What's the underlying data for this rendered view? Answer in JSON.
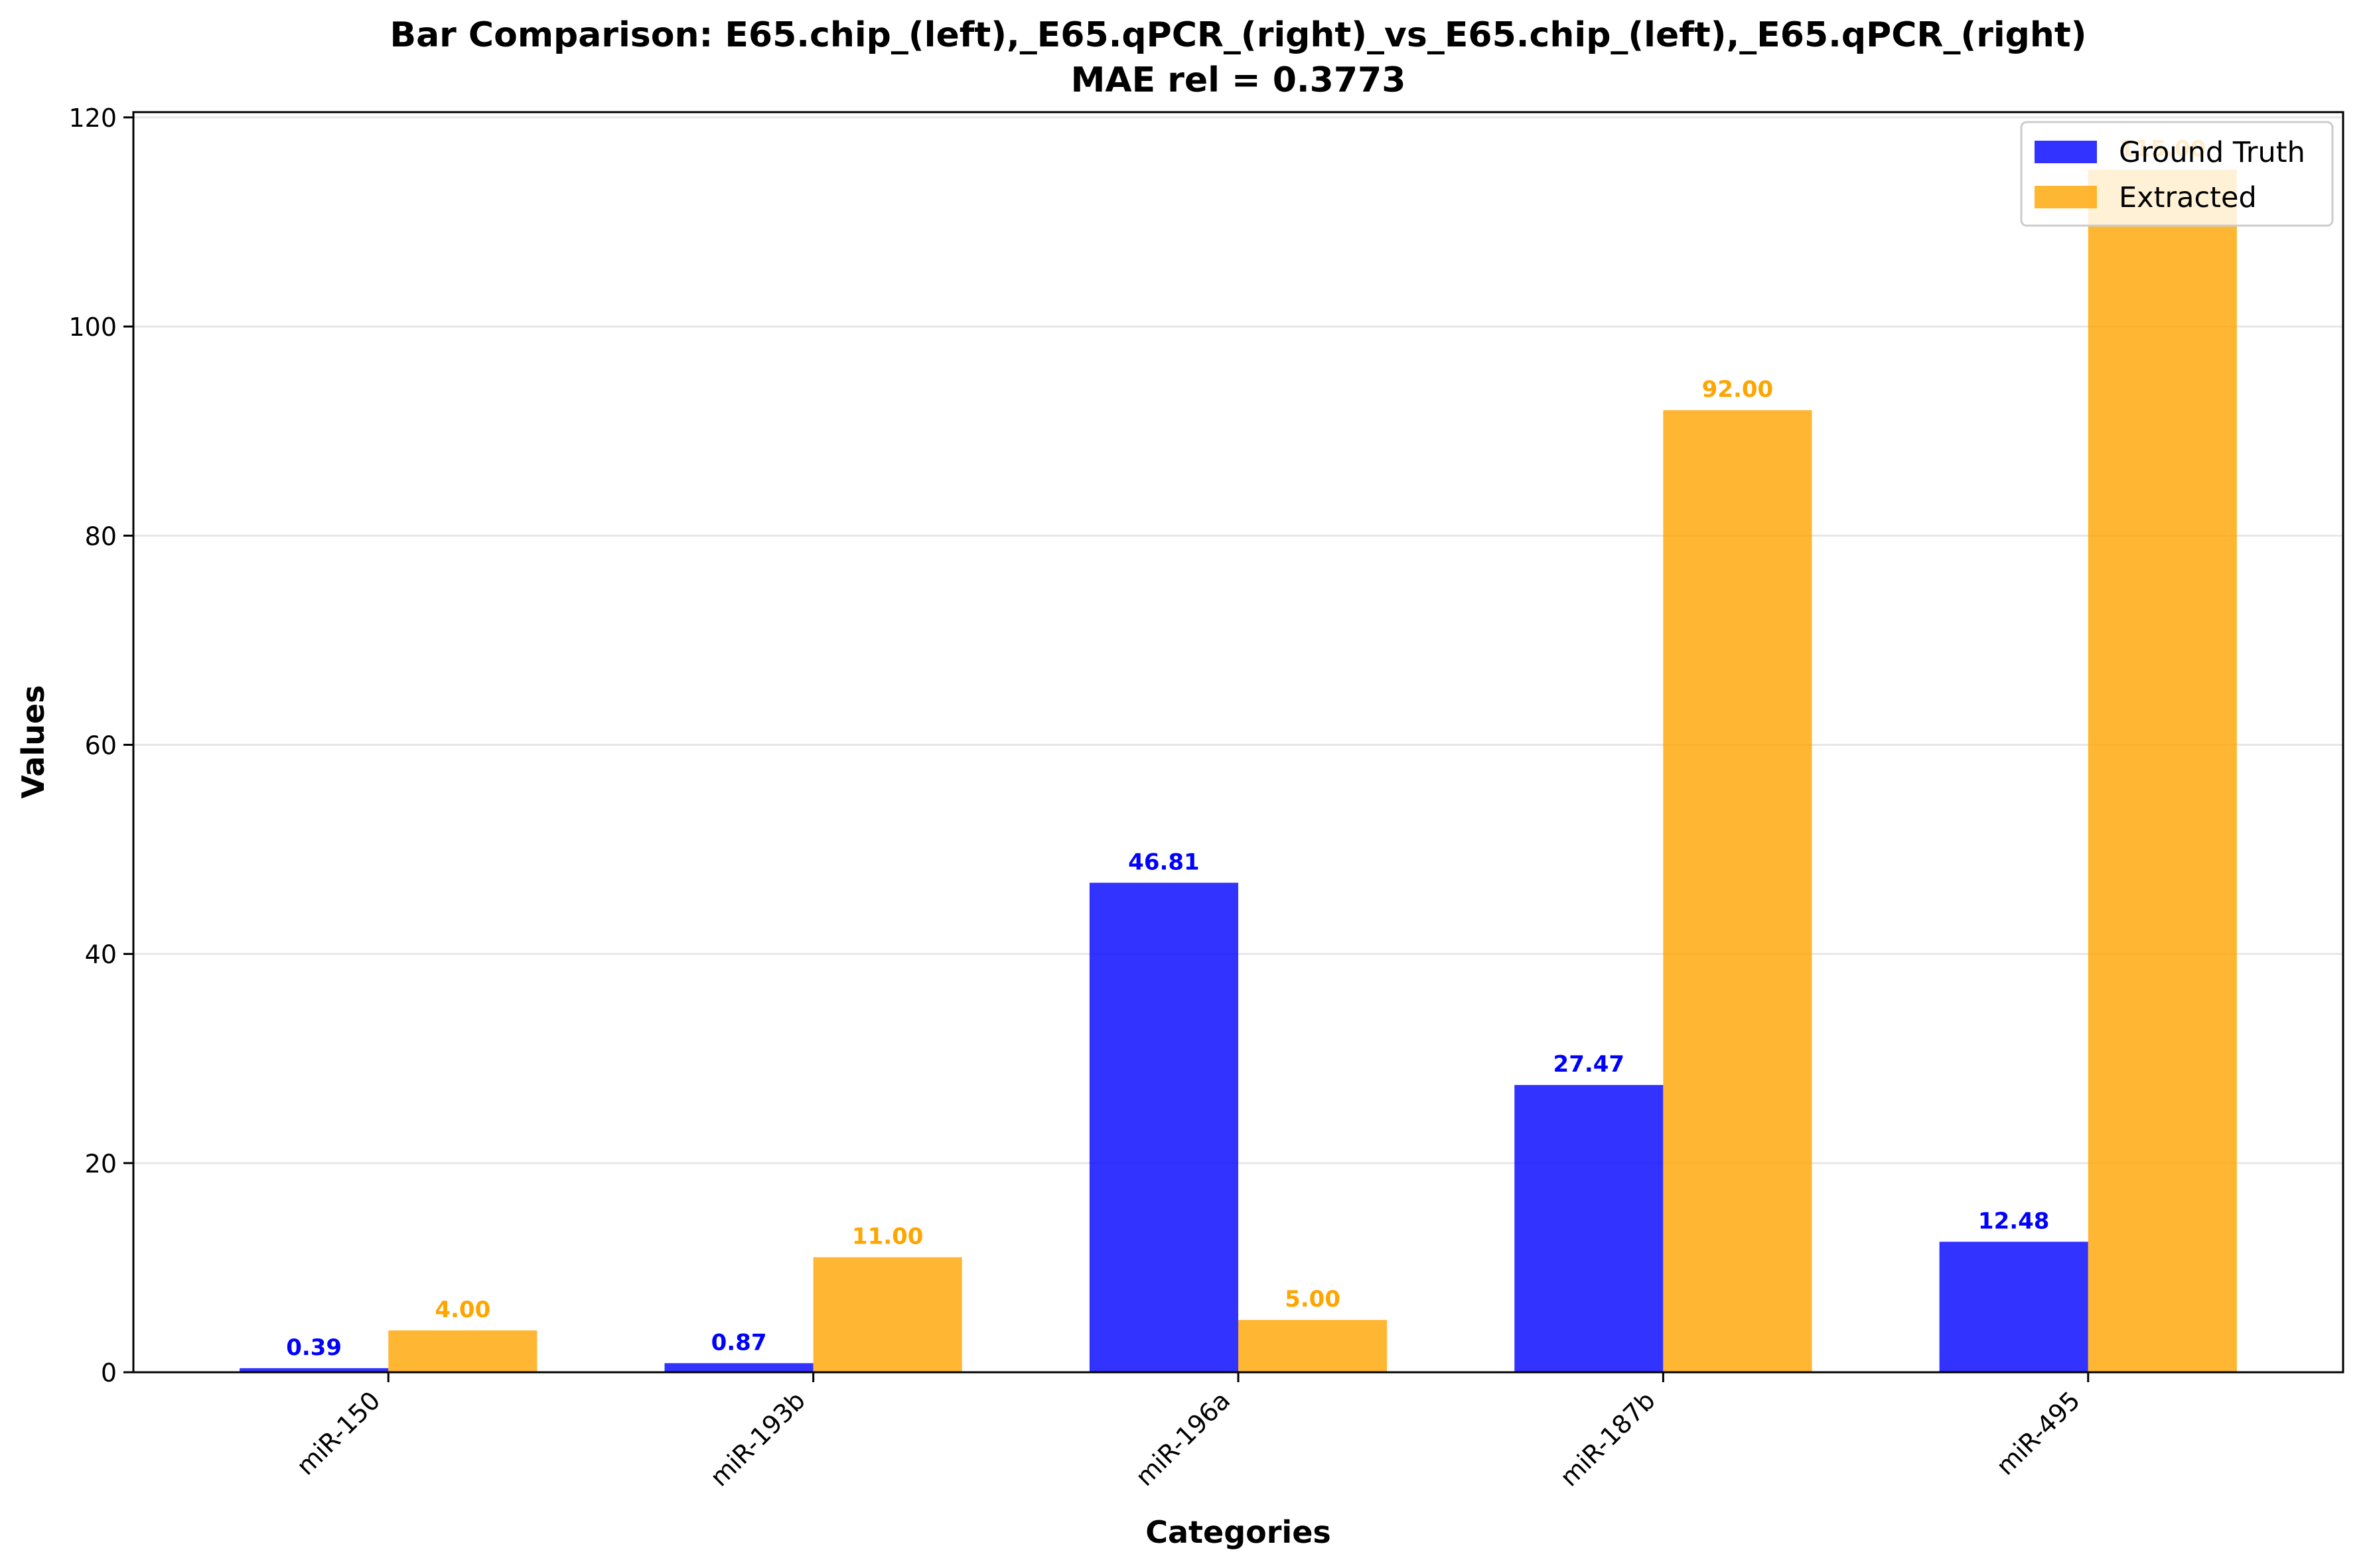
{
  "chart_data": {
    "type": "bar",
    "title": "Bar Comparison: E65.chip_(left),_E65.qPCR_(right)_vs_E65.chip_(left),_E65.qPCR_(right)",
    "subtitle": "MAE rel = 0.3773",
    "xlabel": "Categories",
    "ylabel": "Values",
    "ylim": [
      0,
      120.5
    ],
    "yticks": [
      0,
      20,
      40,
      60,
      80,
      100,
      120
    ],
    "grid": "horizontal",
    "legend_position": "top-right",
    "categories": [
      "miR-150",
      "miR-193b",
      "miR-196a",
      "miR-187b",
      "miR-495"
    ],
    "series": [
      {
        "name": "Ground Truth",
        "color": "#0000ff",
        "values": [
          0.39,
          0.87,
          46.81,
          27.47,
          12.48
        ],
        "labels": [
          "0.39",
          "0.87",
          "46.81",
          "27.47",
          "12.48"
        ]
      },
      {
        "name": "Extracted",
        "color": "#ffa500",
        "values": [
          4.0,
          11.0,
          5.0,
          92.0,
          115.0
        ],
        "labels": [
          "4.00",
          "11.00",
          "5.00",
          "92.00",
          "115.00"
        ]
      }
    ]
  }
}
